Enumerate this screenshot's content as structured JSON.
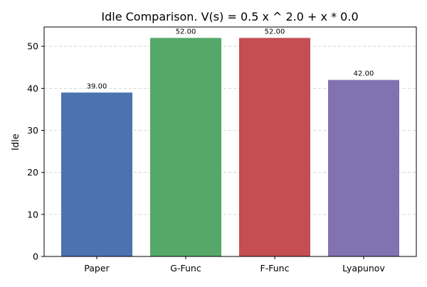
{
  "chart_data": {
    "type": "bar",
    "title": "Idle Comparison. V(s) = 0.5 x ^ 2.0 + x * 0.0",
    "xlabel": "",
    "ylabel": "Idle",
    "categories": [
      "Paper",
      "G-Func",
      "F-Func",
      "Lyapunov"
    ],
    "values": [
      39.0,
      52.0,
      52.0,
      42.0
    ],
    "value_labels": [
      "39.00",
      "52.00",
      "52.00",
      "42.00"
    ],
    "colors": [
      "#4c72b0",
      "#55a868",
      "#c44e52",
      "#8172b2"
    ],
    "ylim": [
      0,
      54.6
    ],
    "yticks": [
      0,
      10,
      20,
      30,
      40,
      50
    ],
    "ytick_labels": [
      "0",
      "10",
      "20",
      "30",
      "40",
      "50"
    ],
    "grid": true,
    "legend": null
  }
}
